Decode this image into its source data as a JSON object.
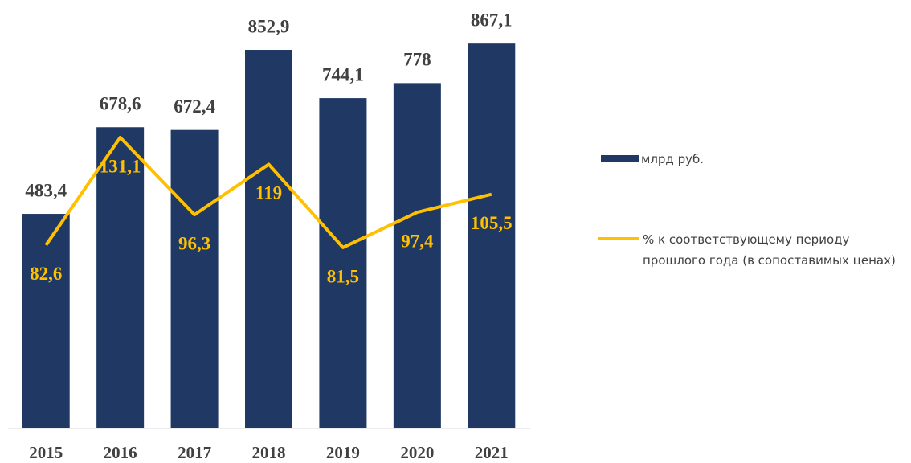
{
  "chart_data": {
    "type": "bar-line",
    "categories": [
      "2015",
      "2016",
      "2017",
      "2018",
      "2019",
      "2020",
      "2021"
    ],
    "series": [
      {
        "name": "млрд руб.",
        "type": "bar",
        "color": "#1f3864",
        "values": [
          483.4,
          678.6,
          672.4,
          852.9,
          744.1,
          778,
          867.1
        ],
        "value_labels": [
          "483,4",
          "678,6",
          "672,4",
          "852,9",
          "744,1",
          "778",
          "867,1"
        ]
      },
      {
        "name": "% к соответствующему периоду прошлого года (в сопоставимых ценах)",
        "type": "line",
        "axis": "y2",
        "color": "#ffc000",
        "values": [
          82.6,
          131.1,
          96.3,
          119,
          81.5,
          97.4,
          105.5
        ],
        "value_labels": [
          "82,6",
          "131,1",
          "96,3",
          "119",
          "81,5",
          "97,4",
          "105,5"
        ]
      }
    ],
    "ylim": [
      0,
      900
    ],
    "y2lim": [
      0,
      180
    ],
    "legend": "right"
  }
}
